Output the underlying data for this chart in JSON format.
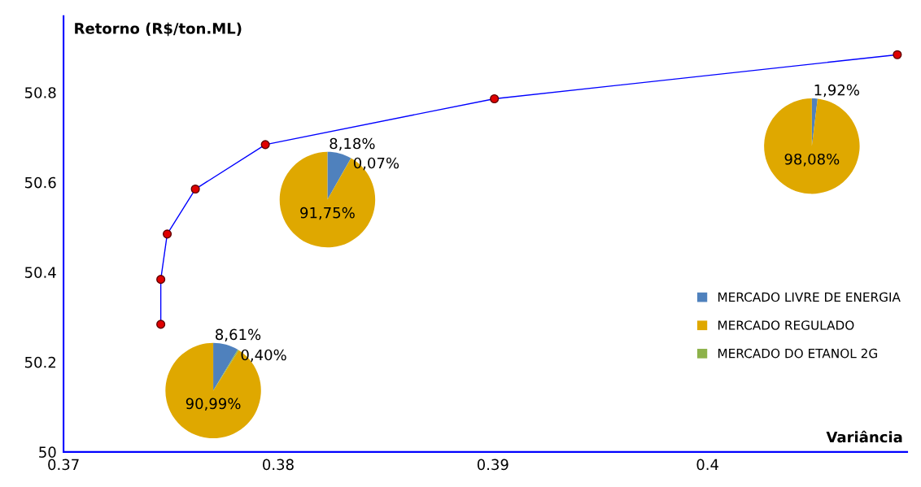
{
  "chart_data": [
    {
      "type": "line",
      "xlabel": "Variância",
      "ylabel": "Retorno (R$/ton.ML)",
      "x": [
        0.37453,
        0.37453,
        0.37483,
        0.37614,
        0.3794,
        0.39007,
        0.40884
      ],
      "series": [
        {
          "color": "#0000ff",
          "values": [
            50.284,
            50.384,
            50.485,
            50.585,
            50.684,
            50.786,
            50.884
          ]
        }
      ],
      "marker": "circle",
      "xlim": [
        0.37,
        0.4093
      ],
      "ylim": [
        50,
        50.97
      ],
      "xticks": [
        0.37,
        0.38,
        0.39,
        0.4
      ],
      "yticks": [
        50,
        50.2,
        50.4,
        50.6,
        50.8
      ],
      "grid": false
    },
    {
      "type": "pie",
      "categories": [
        "MERCADO LIVRE DE ENERGIA",
        "MERCADO REGULADO",
        "MERCADO DO ETANOL 2G"
      ],
      "values": [
        8.61,
        90.99,
        0.4
      ],
      "colors": [
        "#4f81bd",
        "#dfa800",
        "#8db24a"
      ],
      "value_labels": [
        "8,61%",
        "90,99%",
        "0,40%"
      ],
      "legend": "right"
    },
    {
      "type": "pie",
      "categories": [
        null,
        null,
        null
      ],
      "values": [
        8.18,
        91.75,
        0.07
      ],
      "colors": [
        "#4f81bd",
        "#dfa800",
        "#8db24a"
      ],
      "value_labels": [
        "8,18%",
        "91,75%",
        "0,07%"
      ]
    },
    {
      "type": "pie",
      "categories": [
        null,
        null
      ],
      "values": [
        1.92,
        98.08
      ],
      "colors": [
        "#4f81bd",
        "#dfa800"
      ],
      "value_labels": [
        "1,92%",
        "98,08%"
      ]
    }
  ]
}
